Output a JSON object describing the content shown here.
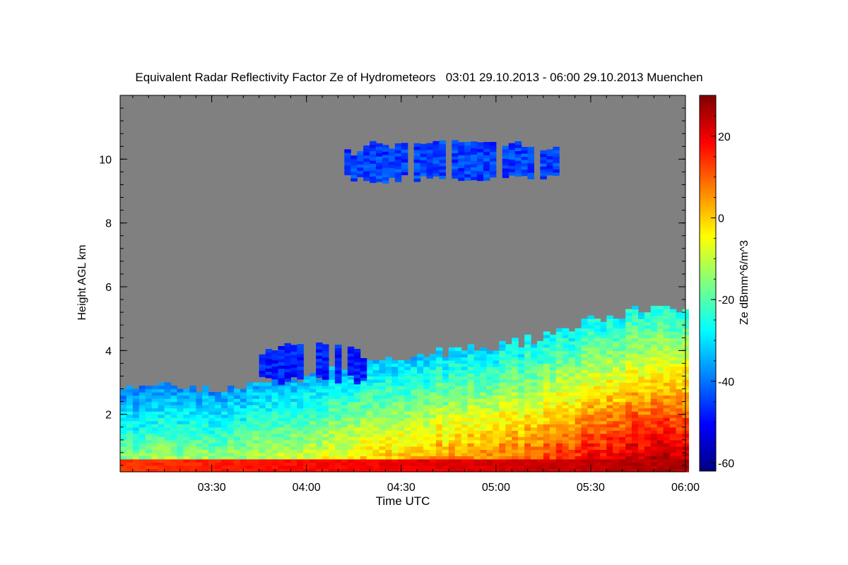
{
  "chart_data": {
    "type": "heatmap",
    "title": "Equivalent Radar Reflectivity Factor Ze of Hydrometeors   03:01 29.10.2013 - 06:00 29.10.2013 Muenchen",
    "xlabel": "Time UTC",
    "ylabel": "Height AGL km",
    "x_ticks": [
      "03:30",
      "04:00",
      "04:30",
      "05:00",
      "05:30",
      "06:00"
    ],
    "y_ticks": [
      "2",
      "4",
      "6",
      "8",
      "10"
    ],
    "xlim": [
      "03:01",
      "06:00"
    ],
    "ylim": [
      0.2,
      12
    ],
    "colorbar": {
      "label": "Ze dBmm^6/m^3",
      "ticks": [
        "20",
        "0",
        "-20",
        "-40",
        "-60"
      ],
      "range": [
        -62,
        30
      ],
      "colors": [
        "#000080",
        "#0000ff",
        "#0080ff",
        "#00ffff",
        "#80ff80",
        "#ffff00",
        "#ff8000",
        "#ff0000",
        "#800000"
      ]
    },
    "background_color": "#808080",
    "cloud_top_km": [
      {
        "t": "03:01",
        "h": 2.8
      },
      {
        "t": "03:15",
        "h": 2.8
      },
      {
        "t": "03:30",
        "h": 2.75
      },
      {
        "t": "03:45",
        "h": 2.9
      },
      {
        "t": "04:00",
        "h": 3.1
      },
      {
        "t": "04:15",
        "h": 3.6
      },
      {
        "t": "04:30",
        "h": 3.75
      },
      {
        "t": "04:45",
        "h": 3.95
      },
      {
        "t": "05:00",
        "h": 4.1
      },
      {
        "t": "05:15",
        "h": 4.4
      },
      {
        "t": "05:30",
        "h": 4.9
      },
      {
        "t": "05:45",
        "h": 5.25
      },
      {
        "t": "06:00",
        "h": 5.3
      }
    ],
    "cirrus_layer": {
      "t_start": "04:12",
      "t_end": "05:20",
      "h_min_km": 9.3,
      "h_max_km": 10.5,
      "ze_dbz": -45
    },
    "mid_layer": {
      "t_start": "03:45",
      "t_end": "04:18",
      "h_min_km": 3.0,
      "h_max_km": 4.2,
      "ze_dbz": -48
    },
    "near_surface_max_dbz": 25
  }
}
